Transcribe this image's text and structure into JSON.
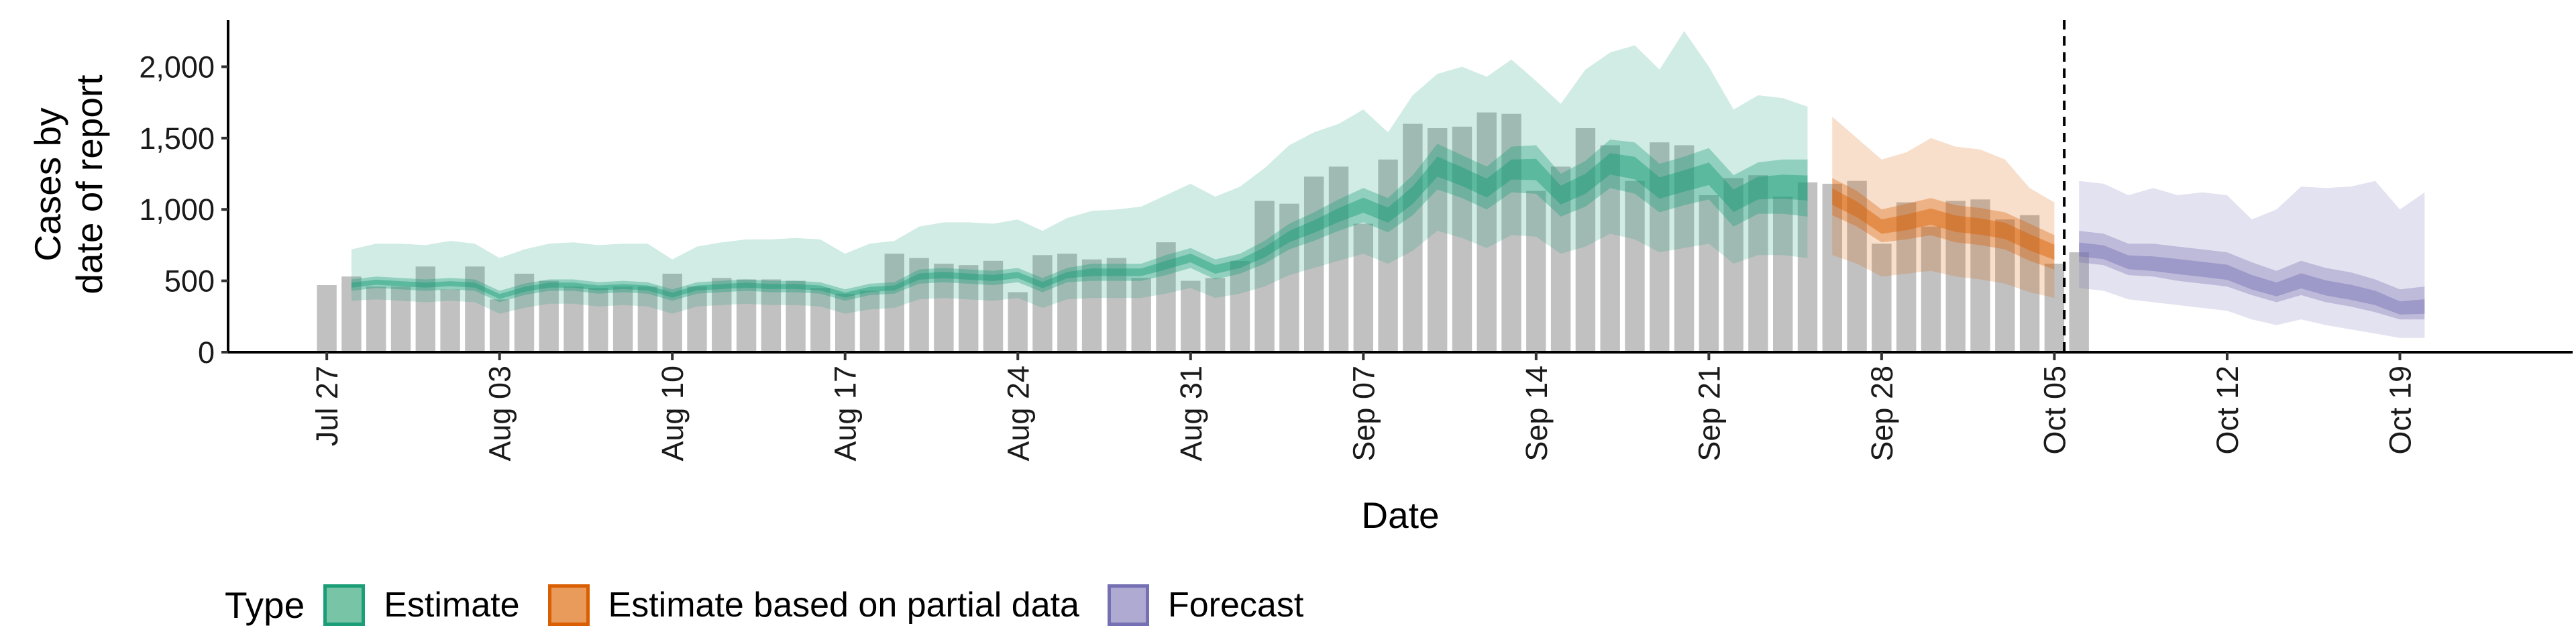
{
  "chart_data": {
    "type": "bar",
    "title": "",
    "xlabel": "Date",
    "ylabel": "Cases by\ndate of report",
    "ylim": [
      0,
      2350
    ],
    "yticks": [
      0,
      500,
      1000,
      1500,
      2000
    ],
    "ytick_labels": [
      "0",
      "500",
      "1,000",
      "1,500",
      "2,000"
    ],
    "xlim": [
      "2020-07-23",
      "2020-10-26"
    ],
    "xticks": [
      "2020-07-27",
      "2020-08-03",
      "2020-08-10",
      "2020-08-17",
      "2020-08-24",
      "2020-08-31",
      "2020-09-07",
      "2020-09-14",
      "2020-09-21",
      "2020-09-28",
      "2020-10-05",
      "2020-10-12",
      "2020-10-19"
    ],
    "xtick_labels": [
      "Jul 27",
      "Aug 03",
      "Aug 10",
      "Aug 17",
      "Aug 24",
      "Aug 31",
      "Sep 07",
      "Sep 14",
      "Sep 21",
      "Sep 28",
      "Oct 05",
      "Oct 12",
      "Oct 19"
    ],
    "grid": false,
    "forecast_start_line": "2020-10-05",
    "bars": {
      "start": "2020-07-27",
      "values": [
        470,
        530,
        460,
        460,
        600,
        440,
        600,
        370,
        550,
        500,
        460,
        450,
        460,
        460,
        550,
        460,
        520,
        510,
        510,
        500,
        450,
        410,
        430,
        690,
        660,
        620,
        610,
        640,
        420,
        680,
        690,
        650,
        660,
        520,
        770,
        500,
        520,
        640,
        1060,
        1040,
        1230,
        1300,
        900,
        1350,
        1600,
        1570,
        1580,
        1680,
        1670,
        1130,
        1300,
        1570,
        1450,
        1200,
        1470,
        1450,
        1100,
        1220,
        1240,
        1090,
        1190,
        1180,
        1200,
        760,
        1050,
        880,
        1060,
        1070,
        930,
        960,
        620,
        700
      ]
    },
    "series": [
      {
        "name": "Estimate",
        "color": "#1b9e77",
        "x": [
          "2020-07-28",
          "2020-07-29",
          "2020-07-30",
          "2020-07-31",
          "2020-08-01",
          "2020-08-02",
          "2020-08-03",
          "2020-08-04",
          "2020-08-05",
          "2020-08-06",
          "2020-08-07",
          "2020-08-08",
          "2020-08-09",
          "2020-08-10",
          "2020-08-11",
          "2020-08-12",
          "2020-08-13",
          "2020-08-14",
          "2020-08-15",
          "2020-08-16",
          "2020-08-17",
          "2020-08-18",
          "2020-08-19",
          "2020-08-20",
          "2020-08-21",
          "2020-08-22",
          "2020-08-23",
          "2020-08-24",
          "2020-08-25",
          "2020-08-26",
          "2020-08-27",
          "2020-08-28",
          "2020-08-29",
          "2020-08-30",
          "2020-08-31",
          "2020-09-01",
          "2020-09-02",
          "2020-09-03",
          "2020-09-04",
          "2020-09-05",
          "2020-09-06",
          "2020-09-07",
          "2020-09-08",
          "2020-09-09",
          "2020-09-10",
          "2020-09-11",
          "2020-09-12",
          "2020-09-13",
          "2020-09-14",
          "2020-09-15",
          "2020-09-16",
          "2020-09-17",
          "2020-09-18",
          "2020-09-19",
          "2020-09-20",
          "2020-09-21",
          "2020-09-22",
          "2020-09-23",
          "2020-09-24",
          "2020-09-25"
        ],
        "median": [
          470,
          490,
          480,
          470,
          480,
          470,
          390,
          440,
          470,
          470,
          450,
          460,
          450,
          400,
          450,
          460,
          470,
          460,
          460,
          450,
          400,
          440,
          450,
          530,
          540,
          530,
          520,
          540,
          470,
          540,
          560,
          560,
          560,
          610,
          660,
          580,
          620,
          700,
          810,
          880,
          960,
          1030,
          960,
          1100,
          1300,
          1230,
          1150,
          1280,
          1280,
          1100,
          1180,
          1320,
          1290,
          1150,
          1200,
          1250,
          1060,
          1150,
          1160,
          1150
        ],
        "ci50_low": [
          430,
          450,
          440,
          430,
          440,
          430,
          350,
          400,
          430,
          430,
          410,
          420,
          410,
          360,
          410,
          420,
          430,
          420,
          420,
          410,
          360,
          400,
          410,
          480,
          490,
          480,
          470,
          490,
          420,
          490,
          500,
          500,
          500,
          540,
          590,
          510,
          550,
          620,
          720,
          780,
          850,
          910,
          840,
          960,
          1140,
          1080,
          1000,
          1120,
          1110,
          950,
          1020,
          1150,
          1110,
          980,
          1030,
          1070,
          880,
          970,
          970,
          950
        ],
        "ci50_high": [
          510,
          530,
          520,
          510,
          520,
          510,
          430,
          480,
          510,
          510,
          490,
          500,
          490,
          440,
          490,
          500,
          510,
          500,
          500,
          490,
          440,
          480,
          490,
          580,
          590,
          580,
          570,
          590,
          520,
          590,
          620,
          620,
          620,
          680,
          730,
          650,
          690,
          780,
          900,
          980,
          1070,
          1150,
          1080,
          1240,
          1460,
          1380,
          1300,
          1440,
          1450,
          1250,
          1340,
          1490,
          1470,
          1320,
          1370,
          1430,
          1240,
          1330,
          1350,
          1350
        ],
        "ci90_low": [
          360,
          370,
          360,
          350,
          360,
          350,
          270,
          310,
          340,
          340,
          320,
          330,
          320,
          270,
          320,
          330,
          340,
          330,
          330,
          320,
          270,
          300,
          310,
          370,
          380,
          370,
          360,
          380,
          310,
          370,
          380,
          380,
          380,
          410,
          450,
          380,
          410,
          460,
          540,
          590,
          640,
          690,
          620,
          710,
          850,
          800,
          730,
          820,
          810,
          690,
          740,
          830,
          790,
          700,
          730,
          760,
          620,
          680,
          680,
          660
        ],
        "ci90_high": [
          720,
          760,
          760,
          750,
          780,
          760,
          660,
          720,
          760,
          770,
          750,
          760,
          760,
          650,
          740,
          770,
          790,
          790,
          800,
          790,
          690,
          760,
          780,
          880,
          910,
          910,
          900,
          930,
          850,
          940,
          990,
          1000,
          1020,
          1100,
          1180,
          1090,
          1160,
          1290,
          1450,
          1540,
          1600,
          1700,
          1540,
          1800,
          1950,
          2000,
          1930,
          2050,
          1900,
          1740,
          1980,
          2100,
          2150,
          1980,
          2250,
          2000,
          1700,
          1800,
          1780,
          1720
        ]
      },
      {
        "name": "Estimate based on partial data",
        "color": "#d95f02",
        "x": [
          "2020-09-26",
          "2020-09-27",
          "2020-09-28",
          "2020-09-29",
          "2020-09-30",
          "2020-10-01",
          "2020-10-02",
          "2020-10-03",
          "2020-10-04",
          "2020-10-05"
        ],
        "median": [
          1090,
          1000,
          880,
          910,
          950,
          900,
          880,
          850,
          770,
          700
        ],
        "ci50_low": [
          960,
          880,
          770,
          790,
          820,
          770,
          750,
          720,
          640,
          580
        ],
        "ci50_high": [
          1220,
          1130,
          1000,
          1040,
          1080,
          1030,
          1010,
          980,
          900,
          820
        ],
        "ci90_low": [
          680,
          620,
          530,
          550,
          570,
          530,
          510,
          480,
          420,
          380
        ],
        "ci90_high": [
          1650,
          1500,
          1350,
          1400,
          1500,
          1440,
          1420,
          1350,
          1150,
          1050
        ]
      },
      {
        "name": "Forecast",
        "color": "#7570b3",
        "x": [
          "2020-10-06",
          "2020-10-07",
          "2020-10-08",
          "2020-10-09",
          "2020-10-10",
          "2020-10-11",
          "2020-10-12",
          "2020-10-13",
          "2020-10-14",
          "2020-10-15",
          "2020-10-16",
          "2020-10-17",
          "2020-10-18",
          "2020-10-19",
          "2020-10-20"
        ],
        "median": [
          720,
          700,
          630,
          620,
          600,
          580,
          560,
          490,
          440,
          500,
          450,
          420,
          380,
          310,
          320
        ],
        "ci50_low": [
          630,
          610,
          540,
          530,
          500,
          480,
          460,
          400,
          350,
          400,
          350,
          320,
          280,
          230,
          230
        ],
        "ci50_high": [
          850,
          830,
          760,
          760,
          740,
          720,
          700,
          630,
          570,
          640,
          590,
          560,
          510,
          440,
          460
        ],
        "ci90_low": [
          450,
          430,
          370,
          350,
          330,
          310,
          290,
          230,
          190,
          230,
          190,
          160,
          130,
          100,
          100
        ],
        "ci90_high": [
          1200,
          1180,
          1100,
          1150,
          1100,
          1120,
          1100,
          930,
          1000,
          1160,
          1150,
          1160,
          1200,
          1000,
          1120
        ]
      }
    ],
    "legend": {
      "title": "Type",
      "position": "bottom-left",
      "items": [
        {
          "label": "Estimate",
          "fill": "#78c4a6",
          "border": "#1b9e77"
        },
        {
          "label": "Estimate based on partial data",
          "fill": "#e89b5b",
          "border": "#d95f02"
        },
        {
          "label": "Forecast",
          "fill": "#aeaad2",
          "border": "#7570b3"
        }
      ]
    }
  }
}
